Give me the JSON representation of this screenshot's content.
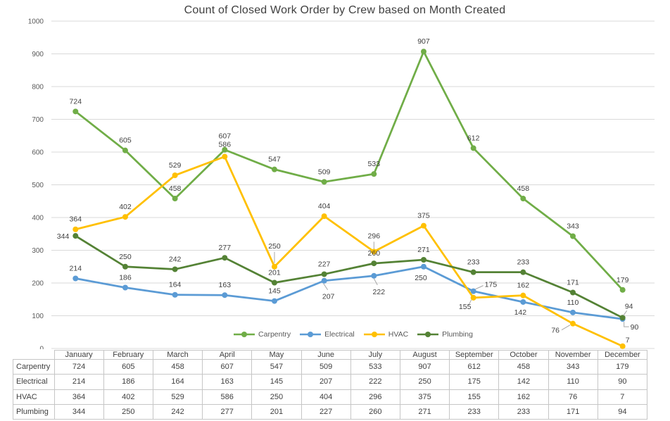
{
  "chart_data": {
    "type": "line",
    "title": "Count of Closed Work Order by Crew based on Month Created",
    "categories": [
      "January",
      "February",
      "March",
      "April",
      "May",
      "June",
      "July",
      "August",
      "September",
      "October",
      "November",
      "December"
    ],
    "series": [
      {
        "name": "Carpentry",
        "color": "#70AD47",
        "values": [
          724,
          605,
          458,
          607,
          547,
          509,
          533,
          907,
          612,
          458,
          343,
          179
        ]
      },
      {
        "name": "Electrical",
        "color": "#5B9BD5",
        "values": [
          214,
          186,
          164,
          163,
          145,
          207,
          222,
          250,
          175,
          142,
          110,
          90
        ]
      },
      {
        "name": "HVAC",
        "color": "#FFC000",
        "values": [
          364,
          402,
          529,
          586,
          250,
          404,
          296,
          375,
          155,
          162,
          76,
          7
        ]
      },
      {
        "name": "Plumbing",
        "color": "#548235",
        "values": [
          344,
          250,
          242,
          277,
          201,
          227,
          260,
          271,
          233,
          233,
          171,
          94
        ]
      }
    ],
    "ylim": [
      0,
      1000
    ],
    "ytick_step": 100,
    "grid": true,
    "legend_position": "bottom",
    "data_labels": true,
    "data_table": true
  },
  "palette": {
    "grid": "#D9D9D9",
    "tick_text": "#595959",
    "label_text": "#404040",
    "leader": "#A6A6A6",
    "table_border": "#C6C6C6",
    "table_text": "#404040",
    "title_text": "#404040"
  }
}
